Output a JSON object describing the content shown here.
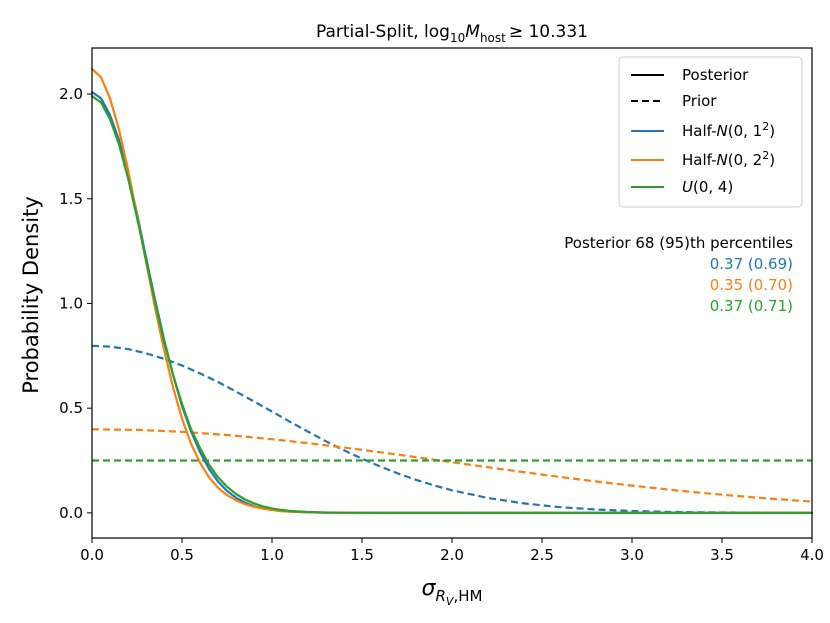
{
  "chart_data": {
    "type": "line",
    "title": "Partial-Split, log10Mhost ≥ 10.331",
    "title_parts": {
      "prefix": "Partial-Split, log",
      "sub10": "10",
      "M": "M",
      "host": "host",
      "rel": "≥ 10.331"
    },
    "xlabel": "σRV,HM",
    "xlabel_parts": {
      "sigma": "σ",
      "R": "R",
      "V": "V",
      "hm": ",HM"
    },
    "ylabel": "Probability Density",
    "xlim": [
      0,
      4.0
    ],
    "ylim": [
      -0.12,
      2.22
    ],
    "x_ticks": [
      0.0,
      0.5,
      1.0,
      1.5,
      2.0,
      2.5,
      3.0,
      3.5,
      4.0
    ],
    "x_tick_labels": [
      "0.0",
      "0.5",
      "1.0",
      "1.5",
      "2.0",
      "2.5",
      "3.0",
      "3.5",
      "4.0"
    ],
    "y_ticks": [
      0.0,
      0.5,
      1.0,
      1.5,
      2.0
    ],
    "y_tick_labels": [
      "0.0",
      "0.5",
      "1.0",
      "1.5",
      "2.0"
    ],
    "legend": {
      "location": "top-right",
      "entries": [
        {
          "label": "Posterior",
          "style": "solid",
          "color": "#000000"
        },
        {
          "label": "Prior",
          "style": "dashed",
          "color": "#000000"
        },
        {
          "label": "Half-N(0, 1²)",
          "style": "solid",
          "color": "#1f77b4"
        },
        {
          "label": "Half-N(0, 2²)",
          "style": "solid",
          "color": "#ff7f0e"
        },
        {
          "label": "U(0, 4)",
          "style": "solid",
          "color": "#2ca02c"
        }
      ]
    },
    "percentiles": {
      "header": "Posterior 68 (95)th percentiles",
      "rows": [
        {
          "text": "0.37 (0.69)",
          "color": "#1f77b4"
        },
        {
          "text": "0.35 (0.70)",
          "color": "#ff7f0e"
        },
        {
          "text": "0.37 (0.71)",
          "color": "#2ca02c"
        }
      ]
    },
    "series": [
      {
        "name": "Posterior Half-N(0, 1²)",
        "color": "#1f77b4",
        "style": "solid",
        "x": [
          0,
          0.05,
          0.1,
          0.15,
          0.2,
          0.25,
          0.3,
          0.35,
          0.4,
          0.45,
          0.5,
          0.55,
          0.6,
          0.65,
          0.7,
          0.75,
          0.8,
          0.85,
          0.9,
          0.95,
          1.0,
          1.05,
          1.1,
          1.2,
          1.3,
          1.4,
          1.5,
          1.75,
          2.0,
          2.5,
          3.0,
          3.5,
          4.0
        ],
        "values": [
          2.01,
          1.98,
          1.9,
          1.78,
          1.62,
          1.43,
          1.22,
          1.02,
          0.83,
          0.66,
          0.51,
          0.39,
          0.29,
          0.21,
          0.15,
          0.105,
          0.072,
          0.049,
          0.032,
          0.021,
          0.014,
          0.009,
          0.006,
          0.0025,
          0.001,
          0.0004,
          0.0002,
          0.0,
          0.0,
          0.0,
          0.0,
          0.0,
          0.0
        ]
      },
      {
        "name": "Posterior Half-N(0, 2²)",
        "color": "#ff7f0e",
        "style": "solid",
        "x": [
          0,
          0.05,
          0.1,
          0.15,
          0.2,
          0.25,
          0.3,
          0.35,
          0.4,
          0.45,
          0.5,
          0.55,
          0.6,
          0.65,
          0.7,
          0.75,
          0.8,
          0.85,
          0.9,
          0.95,
          1.0,
          1.05,
          1.1,
          1.2,
          1.3,
          1.4,
          1.5,
          1.75,
          2.0,
          2.5,
          3.0,
          3.5,
          4.0
        ],
        "values": [
          2.12,
          2.08,
          1.98,
          1.83,
          1.64,
          1.42,
          1.2,
          0.98,
          0.78,
          0.6,
          0.45,
          0.33,
          0.24,
          0.17,
          0.12,
          0.085,
          0.06,
          0.042,
          0.029,
          0.02,
          0.014,
          0.009,
          0.006,
          0.0025,
          0.001,
          0.0004,
          0.0002,
          0.0,
          0.0,
          0.0,
          0.0,
          0.0,
          0.0
        ]
      },
      {
        "name": "Posterior U(0, 4)",
        "color": "#2ca02c",
        "style": "solid",
        "x": [
          0,
          0.05,
          0.1,
          0.15,
          0.2,
          0.25,
          0.3,
          0.35,
          0.4,
          0.45,
          0.5,
          0.55,
          0.6,
          0.65,
          0.7,
          0.75,
          0.8,
          0.85,
          0.9,
          0.95,
          1.0,
          1.05,
          1.1,
          1.2,
          1.3,
          1.4,
          1.5,
          1.75,
          2.0,
          2.5,
          3.0,
          3.5,
          4.0
        ],
        "values": [
          1.99,
          1.96,
          1.88,
          1.76,
          1.6,
          1.41,
          1.21,
          1.01,
          0.82,
          0.66,
          0.52,
          0.4,
          0.31,
          0.23,
          0.17,
          0.125,
          0.09,
          0.064,
          0.045,
          0.031,
          0.021,
          0.014,
          0.009,
          0.004,
          0.0018,
          0.0008,
          0.0003,
          0.0,
          0.0,
          0.0,
          0.0,
          0.0,
          0.0
        ]
      },
      {
        "name": "Prior Half-N(0, 1²)",
        "color": "#1f77b4",
        "style": "dashed",
        "x": [
          0,
          0.1,
          0.2,
          0.3,
          0.4,
          0.5,
          0.6,
          0.7,
          0.8,
          0.9,
          1.0,
          1.1,
          1.2,
          1.3,
          1.4,
          1.5,
          1.6,
          1.7,
          1.8,
          1.9,
          2.0,
          2.2,
          2.4,
          2.6,
          2.8,
          3.0,
          3.2,
          3.4,
          3.6,
          3.8,
          4.0
        ],
        "values": [
          0.798,
          0.794,
          0.782,
          0.762,
          0.736,
          0.704,
          0.666,
          0.625,
          0.579,
          0.532,
          0.484,
          0.435,
          0.388,
          0.342,
          0.299,
          0.259,
          0.222,
          0.188,
          0.158,
          0.131,
          0.108,
          0.071,
          0.045,
          0.027,
          0.016,
          0.0089,
          0.0048,
          0.0025,
          0.0012,
          0.0006,
          0.0003
        ]
      },
      {
        "name": "Prior Half-N(0, 2²)",
        "color": "#ff7f0e",
        "style": "dashed",
        "x": [
          0,
          0.25,
          0.5,
          0.75,
          1.0,
          1.25,
          1.5,
          1.75,
          2.0,
          2.25,
          2.5,
          2.75,
          3.0,
          3.25,
          3.5,
          3.75,
          4.0
        ],
        "values": [
          0.399,
          0.396,
          0.387,
          0.372,
          0.352,
          0.328,
          0.301,
          0.272,
          0.242,
          0.212,
          0.183,
          0.155,
          0.13,
          0.107,
          0.087,
          0.069,
          0.054
        ]
      },
      {
        "name": "Prior U(0, 4)",
        "color": "#2ca02c",
        "style": "dashed",
        "x": [
          0,
          4.0
        ],
        "values": [
          0.25,
          0.25
        ]
      }
    ]
  }
}
